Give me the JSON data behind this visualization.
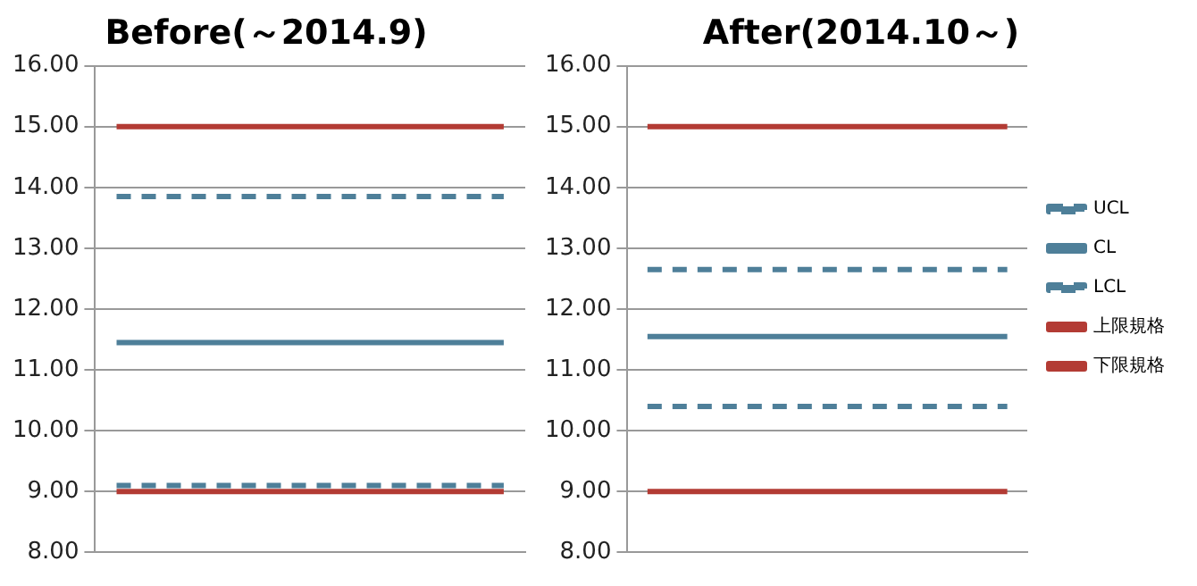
{
  "chart_data": [
    {
      "type": "line",
      "title": "Before(～2014.9)",
      "categories": [
        null,
        null,
        null,
        null,
        null,
        null,
        null,
        null,
        null,
        null
      ],
      "series": [
        {
          "color": "#4e7f99",
          "line_style": "dashed",
          "values": [
            13.85,
            13.85,
            13.85,
            13.85,
            13.85,
            13.85,
            13.85,
            13.85,
            13.85,
            13.85
          ]
        },
        {
          "color": "#4e7f99",
          "line_style": "solid",
          "values": [
            11.45,
            11.45,
            11.45,
            11.45,
            11.45,
            11.45,
            11.45,
            11.45,
            11.45,
            11.45
          ]
        },
        {
          "color": "#4e7f99",
          "line_style": "dashed",
          "values": [
            9.1,
            9.1,
            9.1,
            9.1,
            9.1,
            9.1,
            9.1,
            9.1,
            9.1,
            9.1
          ]
        },
        {
          "color": "#b33b34",
          "line_style": "solid",
          "values": [
            15,
            15,
            15,
            15,
            15,
            15,
            15,
            15,
            15,
            15
          ]
        },
        {
          "color": "#b33b34",
          "line_style": "solid",
          "values": [
            9,
            9,
            9,
            9,
            9,
            9,
            9,
            9,
            9,
            9
          ]
        }
      ],
      "ylim": [
        8,
        16
      ],
      "yticks": [
        {
          "value": 8,
          "label": "8.00"
        },
        {
          "value": 9,
          "label": "9.00"
        },
        {
          "value": 10,
          "label": "10.00"
        },
        {
          "value": 11,
          "label": "11.00"
        },
        {
          "value": 12,
          "label": "12.00"
        },
        {
          "value": 13,
          "label": "13.00"
        },
        {
          "value": 14,
          "label": "14.00"
        },
        {
          "value": 15,
          "label": "15.00"
        },
        {
          "value": 16,
          "label": "16.00"
        }
      ],
      "grid": "y",
      "tick_labels": "y",
      "legend": false,
      "marker": "none"
    },
    {
      "type": "line",
      "title": "After(2014.10～)",
      "categories": [
        null,
        null,
        null,
        null,
        null,
        null,
        null,
        null,
        null,
        null
      ],
      "series": [
        {
          "name": "UCL",
          "color": "#4e7f99",
          "line_style": "dashed",
          "values": [
            12.65,
            12.65,
            12.65,
            12.65,
            12.65,
            12.65,
            12.65,
            12.65,
            12.65,
            12.65
          ]
        },
        {
          "name": "CL",
          "color": "#4e7f99",
          "line_style": "solid",
          "values": [
            11.55,
            11.55,
            11.55,
            11.55,
            11.55,
            11.55,
            11.55,
            11.55,
            11.55,
            11.55
          ]
        },
        {
          "name": "LCL",
          "color": "#4e7f99",
          "line_style": "dashed",
          "values": [
            10.4,
            10.4,
            10.4,
            10.4,
            10.4,
            10.4,
            10.4,
            10.4,
            10.4,
            10.4
          ]
        },
        {
          "name": "上限規格",
          "color": "#b33b34",
          "line_style": "solid",
          "values": [
            15,
            15,
            15,
            15,
            15,
            15,
            15,
            15,
            15,
            15
          ]
        },
        {
          "name": "下限規格",
          "color": "#b33b34",
          "line_style": "solid",
          "values": [
            9,
            9,
            9,
            9,
            9,
            9,
            9,
            9,
            9,
            9
          ]
        }
      ],
      "ylim": [
        8,
        16
      ],
      "yticks": [
        {
          "value": 8,
          "label": "8.00"
        },
        {
          "value": 9,
          "label": "9.00"
        },
        {
          "value": 10,
          "label": "10.00"
        },
        {
          "value": 11,
          "label": "11.00"
        },
        {
          "value": 12,
          "label": "12.00"
        },
        {
          "value": 13,
          "label": "13.00"
        },
        {
          "value": 14,
          "label": "14.00"
        },
        {
          "value": 15,
          "label": "15.00"
        },
        {
          "value": 16,
          "label": "16.00"
        }
      ],
      "grid": "y",
      "tick_labels": "y",
      "legend": "right",
      "marker": "none"
    }
  ]
}
